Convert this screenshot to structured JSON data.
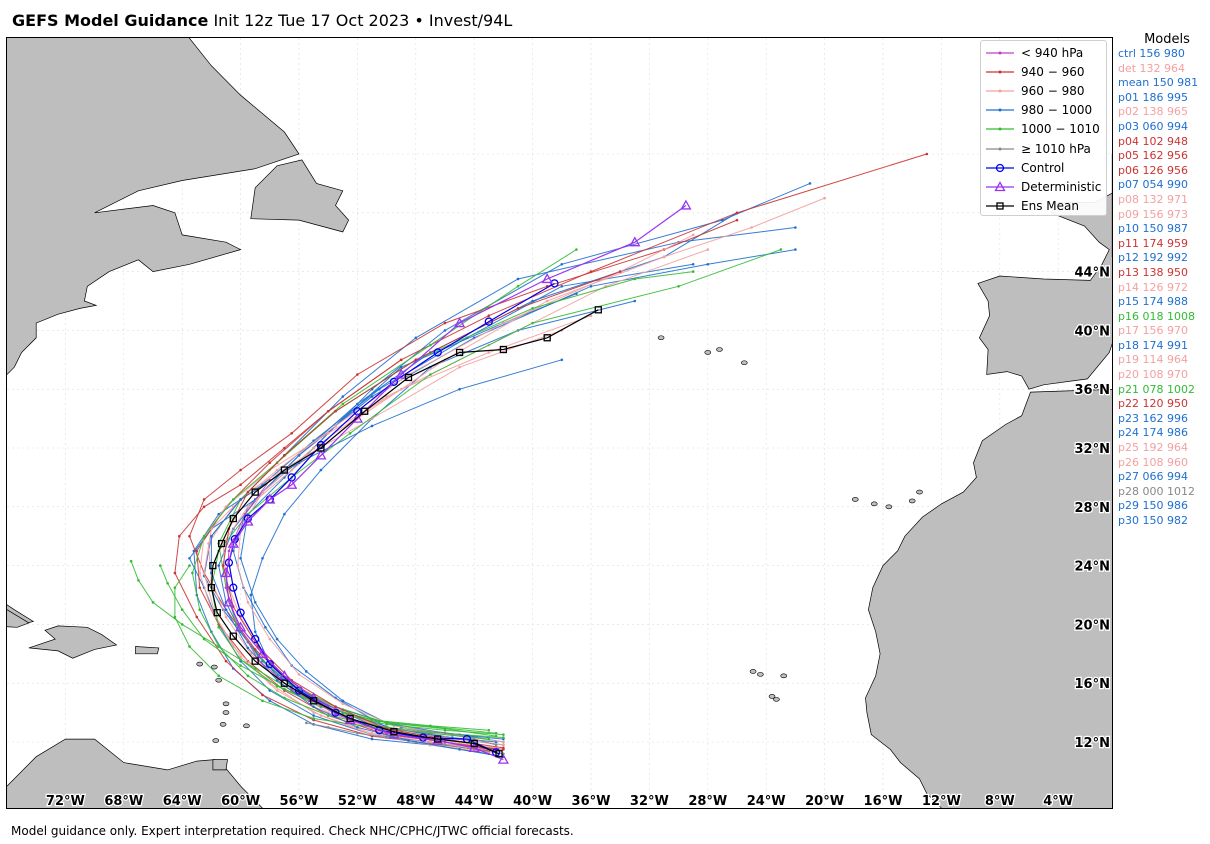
{
  "title": {
    "bold": "GEFS Model Guidance",
    "rest": "Init 12z Tue 17 Oct 2023 • Invest/94L"
  },
  "footer": "Model guidance only. Expert interpretation required. Check NHC/CPHC/JTWC official forecasts.",
  "models_title": "Models",
  "models": [
    {
      "label": "ctrl 156 980",
      "color": "#1f6fd0"
    },
    {
      "label": "det 132 964",
      "color": "#f4a0a0"
    },
    {
      "label": "mean 150 981",
      "color": "#1f6fd0"
    },
    {
      "label": "p01 186 995",
      "color": "#1f6fd0"
    },
    {
      "label": "p02 138 965",
      "color": "#f4a0a0"
    },
    {
      "label": "p03 060 994",
      "color": "#1f6fd0"
    },
    {
      "label": "p04 102 948",
      "color": "#cc3333"
    },
    {
      "label": "p05 162 956",
      "color": "#cc3333"
    },
    {
      "label": "p06 126 956",
      "color": "#cc3333"
    },
    {
      "label": "p07 054 990",
      "color": "#1f6fd0"
    },
    {
      "label": "p08 132 971",
      "color": "#f4a0a0"
    },
    {
      "label": "p09 156 973",
      "color": "#f4a0a0"
    },
    {
      "label": "p10 150 987",
      "color": "#1f6fd0"
    },
    {
      "label": "p11 174 959",
      "color": "#cc3333"
    },
    {
      "label": "p12 192 992",
      "color": "#1f6fd0"
    },
    {
      "label": "p13 138 950",
      "color": "#cc3333"
    },
    {
      "label": "p14 126 972",
      "color": "#f4a0a0"
    },
    {
      "label": "p15 174 988",
      "color": "#1f6fd0"
    },
    {
      "label": "p16 018 1008",
      "color": "#33bb33"
    },
    {
      "label": "p17 156 970",
      "color": "#f4a0a0"
    },
    {
      "label": "p18 174 991",
      "color": "#1f6fd0"
    },
    {
      "label": "p19 114 964",
      "color": "#f4a0a0"
    },
    {
      "label": "p20 108 970",
      "color": "#f4a0a0"
    },
    {
      "label": "p21 078 1002",
      "color": "#33bb33"
    },
    {
      "label": "p22 120 950",
      "color": "#cc3333"
    },
    {
      "label": "p23 162 996",
      "color": "#1f6fd0"
    },
    {
      "label": "p24 174 986",
      "color": "#1f6fd0"
    },
    {
      "label": "p25 192 964",
      "color": "#f4a0a0"
    },
    {
      "label": "p26 108 960",
      "color": "#f4a0a0"
    },
    {
      "label": "p27 066 994",
      "color": "#1f6fd0"
    },
    {
      "label": "p28 000 1012",
      "color": "#888888"
    },
    {
      "label": "p29 150 986",
      "color": "#1f6fd0"
    },
    {
      "label": "p30 150 982",
      "color": "#1f6fd0"
    }
  ],
  "legend": [
    {
      "label": "< 940 hPa",
      "color": "#c040c0",
      "kind": "dot"
    },
    {
      "label": "940 − 960",
      "color": "#cc3333",
      "kind": "dot"
    },
    {
      "label": "960 − 980",
      "color": "#f4a0a0",
      "kind": "dot"
    },
    {
      "label": "980 − 1000",
      "color": "#1f6fd0",
      "kind": "dot"
    },
    {
      "label": "1000 − 1010",
      "color": "#33bb33",
      "kind": "dot"
    },
    {
      "label": "≥ 1010 hPa",
      "color": "#888888",
      "kind": "dot"
    },
    {
      "label": "Control",
      "color": "#0000ee",
      "kind": "circle"
    },
    {
      "label": "Deterministic",
      "color": "#9933ee",
      "kind": "triangle"
    },
    {
      "label": "Ens Mean",
      "color": "#000000",
      "kind": "square"
    }
  ],
  "lon_labels": [
    "72°W",
    "68°W",
    "64°W",
    "60°W",
    "56°W",
    "52°W",
    "48°W",
    "44°W",
    "40°W",
    "36°W",
    "32°W",
    "28°W",
    "24°W",
    "20°W",
    "16°W",
    "12°W",
    "8°W",
    "4°W"
  ],
  "lat_labels": [
    "12°N",
    "16°N",
    "20°N",
    "24°N",
    "28°N",
    "32°N",
    "36°N",
    "40°N",
    "44°N"
  ],
  "colors": {
    "land": "#bebebe",
    "coast": "#000000",
    "grid": "#dddddd"
  },
  "tracks": {
    "control": [
      [
        -42.5,
        11.3
      ],
      [
        -44.5,
        12.2
      ],
      [
        -47.5,
        12.3
      ],
      [
        -50.5,
        12.8
      ],
      [
        -53.5,
        14.0
      ],
      [
        -56.0,
        15.5
      ],
      [
        -58.0,
        17.3
      ],
      [
        -59.0,
        19.0
      ],
      [
        -60.0,
        20.8
      ],
      [
        -60.5,
        22.5
      ],
      [
        -60.8,
        24.2
      ],
      [
        -60.4,
        25.8
      ],
      [
        -59.5,
        27.2
      ],
      [
        -58.0,
        28.5
      ],
      [
        -56.5,
        30.0
      ],
      [
        -54.5,
        32.2
      ],
      [
        -52.0,
        34.5
      ],
      [
        -49.5,
        36.5
      ],
      [
        -46.5,
        38.5
      ],
      [
        -43.0,
        40.6
      ],
      [
        -38.5,
        43.2
      ]
    ],
    "deterministic": [
      [
        -42.0,
        10.8
      ],
      [
        -44.0,
        11.6
      ],
      [
        -46.5,
        12.1
      ],
      [
        -49.5,
        12.5
      ],
      [
        -52.5,
        13.5
      ],
      [
        -55.0,
        15.0
      ],
      [
        -57.0,
        16.5
      ],
      [
        -58.5,
        18.0
      ],
      [
        -60.0,
        19.8
      ],
      [
        -60.8,
        21.5
      ],
      [
        -61.0,
        23.5
      ],
      [
        -60.5,
        25.5
      ],
      [
        -59.5,
        27.0
      ],
      [
        -58.0,
        28.5
      ],
      [
        -56.5,
        29.5
      ],
      [
        -54.5,
        31.5
      ],
      [
        -52.0,
        34.0
      ],
      [
        -49.0,
        37.0
      ],
      [
        -45.0,
        40.5
      ],
      [
        -39.0,
        43.5
      ],
      [
        -33.0,
        46.0
      ],
      [
        -29.5,
        48.5
      ]
    ],
    "mean": [
      [
        -42.3,
        11.2
      ],
      [
        -44.0,
        11.9
      ],
      [
        -46.5,
        12.2
      ],
      [
        -49.5,
        12.7
      ],
      [
        -52.5,
        13.6
      ],
      [
        -55.0,
        14.8
      ],
      [
        -57.0,
        16.0
      ],
      [
        -59.0,
        17.5
      ],
      [
        -60.5,
        19.2
      ],
      [
        -61.6,
        20.8
      ],
      [
        -62.0,
        22.5
      ],
      [
        -61.9,
        24.0
      ],
      [
        -61.3,
        25.5
      ],
      [
        -60.5,
        27.2
      ],
      [
        -59.0,
        29.0
      ],
      [
        -57.0,
        30.5
      ],
      [
        -54.5,
        32.0
      ],
      [
        -51.5,
        34.5
      ],
      [
        -48.5,
        36.8
      ],
      [
        -45.0,
        38.5
      ],
      [
        -42.0,
        38.7
      ],
      [
        -39.0,
        39.5
      ],
      [
        -35.5,
        41.4
      ]
    ]
  }
}
